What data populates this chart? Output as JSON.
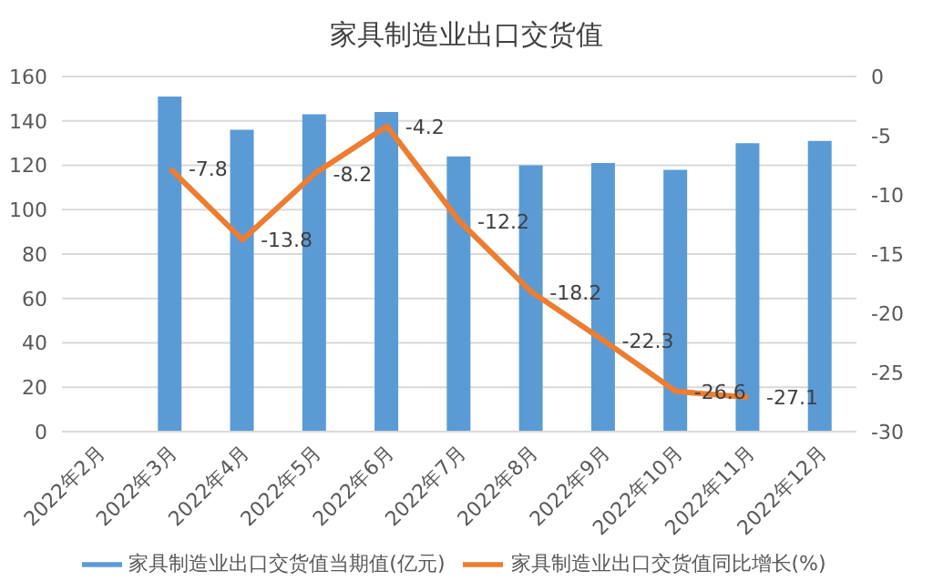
{
  "chart_data": {
    "type": "bar",
    "title": "家具制造业出口交货值",
    "categories": [
      "2022年2月",
      "2022年3月",
      "2022年4月",
      "2022年5月",
      "2022年6月",
      "2022年7月",
      "2022年8月",
      "2022年9月",
      "2022年10月",
      "2022年11月",
      "2022年12月"
    ],
    "series": [
      {
        "name": "家具制造业出口交货值当期值(亿元)",
        "color": "#5b9bd5",
        "values": [
          null,
          151,
          136,
          143,
          144,
          124,
          120,
          121,
          118,
          130,
          131
        ]
      },
      {
        "name": "家具制造业出口交货值同比增长(%)",
        "type": "line",
        "axis": "y2",
        "color": "#ed7d31",
        "values": [
          null,
          -7.8,
          -13.8,
          -8.2,
          -4.2,
          -12.2,
          -18.2,
          -22.3,
          -26.6,
          -27.1,
          null
        ],
        "value_labels": [
          null,
          "-7.8",
          "-13.8",
          "-8.2",
          "-4.2",
          "-12.2",
          "-18.2",
          "-22.3",
          "-26.6",
          "-27.1",
          null
        ]
      }
    ],
    "ylim": [
      0,
      160
    ],
    "yticks": [
      0,
      20,
      40,
      60,
      80,
      100,
      120,
      140,
      160
    ],
    "y2lim": [
      -30,
      0
    ],
    "y2ticks": [
      -30,
      -25,
      -20,
      -15,
      -10,
      -5,
      0
    ],
    "grid": "y",
    "legend": "bottom",
    "marker": "none"
  }
}
